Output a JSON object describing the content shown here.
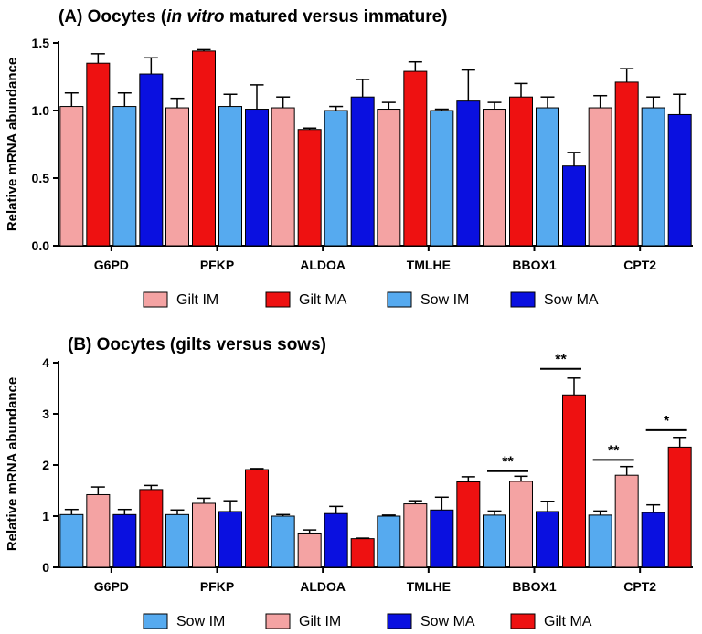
{
  "colors": {
    "gilt_im": "#f4a3a3",
    "gilt_ma": "#ee1111",
    "sow_im": "#56aaef",
    "sow_ma": "#0a10e0",
    "axis": "#000000"
  },
  "chart_data": [
    {
      "type": "bar",
      "title_prefix": "(A) Oocytes (",
      "title_italic": "in vitro",
      "title_suffix": " matured versus immature)",
      "ylabel": "Relative mRNA abundance",
      "xlabel": "",
      "ylim": [
        0,
        1.5
      ],
      "yticks": [
        "0.0",
        "0.5",
        "1.0",
        "1.5"
      ],
      "ytick_values": [
        0,
        0.5,
        1.0,
        1.5
      ],
      "categories": [
        "G6PD",
        "PFKP",
        "ALDOA",
        "TMLHE",
        "BBOX1",
        "CPT2"
      ],
      "legend_position": "bottom",
      "series": [
        {
          "name": "Gilt IM",
          "color_key": "gilt_im",
          "values": [
            1.03,
            1.02,
            1.02,
            1.01,
            1.01,
            1.02
          ],
          "errors": [
            0.1,
            0.07,
            0.08,
            0.05,
            0.05,
            0.09
          ]
        },
        {
          "name": "Gilt MA",
          "color_key": "gilt_ma",
          "values": [
            1.35,
            1.44,
            0.86,
            1.29,
            1.1,
            1.21
          ],
          "errors": [
            0.07,
            0.01,
            0.01,
            0.07,
            0.1,
            0.1
          ]
        },
        {
          "name": "Sow IM",
          "color_key": "sow_im",
          "values": [
            1.03,
            1.03,
            1.0,
            1.0,
            1.02,
            1.02
          ],
          "errors": [
            0.1,
            0.09,
            0.03,
            0.01,
            0.08,
            0.08
          ]
        },
        {
          "name": "Sow MA",
          "color_key": "sow_ma",
          "values": [
            1.27,
            1.01,
            1.1,
            1.07,
            0.59,
            0.97
          ],
          "errors": [
            0.12,
            0.18,
            0.13,
            0.23,
            0.1,
            0.15
          ]
        }
      ],
      "significance": []
    },
    {
      "type": "bar",
      "title_prefix": "(B) Oocytes (gilts versus sows)",
      "title_italic": "",
      "title_suffix": "",
      "ylabel": "Relative mRNA abundance",
      "xlabel": "",
      "ylim": [
        0,
        4
      ],
      "yticks": [
        "0",
        "1",
        "2",
        "3",
        "4"
      ],
      "ytick_values": [
        0,
        1,
        2,
        3,
        4
      ],
      "categories": [
        "G6PD",
        "PFKP",
        "ALDOA",
        "TMLHE",
        "BBOX1",
        "CPT2"
      ],
      "legend_position": "bottom",
      "series": [
        {
          "name": "Sow IM",
          "color_key": "sow_im",
          "values": [
            1.03,
            1.03,
            1.0,
            1.0,
            1.02,
            1.02
          ],
          "errors": [
            0.1,
            0.09,
            0.03,
            0.02,
            0.08,
            0.08
          ]
        },
        {
          "name": "Gilt IM",
          "color_key": "gilt_im",
          "values": [
            1.42,
            1.25,
            0.67,
            1.24,
            1.68,
            1.8
          ],
          "errors": [
            0.15,
            0.1,
            0.06,
            0.06,
            0.1,
            0.17
          ]
        },
        {
          "name": "Sow MA",
          "color_key": "sow_ma",
          "values": [
            1.03,
            1.09,
            1.05,
            1.12,
            1.09,
            1.07
          ],
          "errors": [
            0.1,
            0.21,
            0.14,
            0.25,
            0.2,
            0.15
          ]
        },
        {
          "name": "Gilt MA",
          "color_key": "gilt_ma",
          "values": [
            1.52,
            1.91,
            0.56,
            1.67,
            3.37,
            2.35
          ],
          "errors": [
            0.08,
            0.02,
            0.01,
            0.1,
            0.33,
            0.19
          ]
        }
      ],
      "significance": [
        {
          "category": "BBOX1",
          "from_series": 0,
          "to_series": 1,
          "label": "**",
          "y": 1.88
        },
        {
          "category": "BBOX1",
          "from_series": 2,
          "to_series": 3,
          "label": "**",
          "y": 3.88
        },
        {
          "category": "CPT2",
          "from_series": 0,
          "to_series": 1,
          "label": "**",
          "y": 2.1
        },
        {
          "category": "CPT2",
          "from_series": 2,
          "to_series": 3,
          "label": "*",
          "y": 2.68
        }
      ]
    }
  ]
}
